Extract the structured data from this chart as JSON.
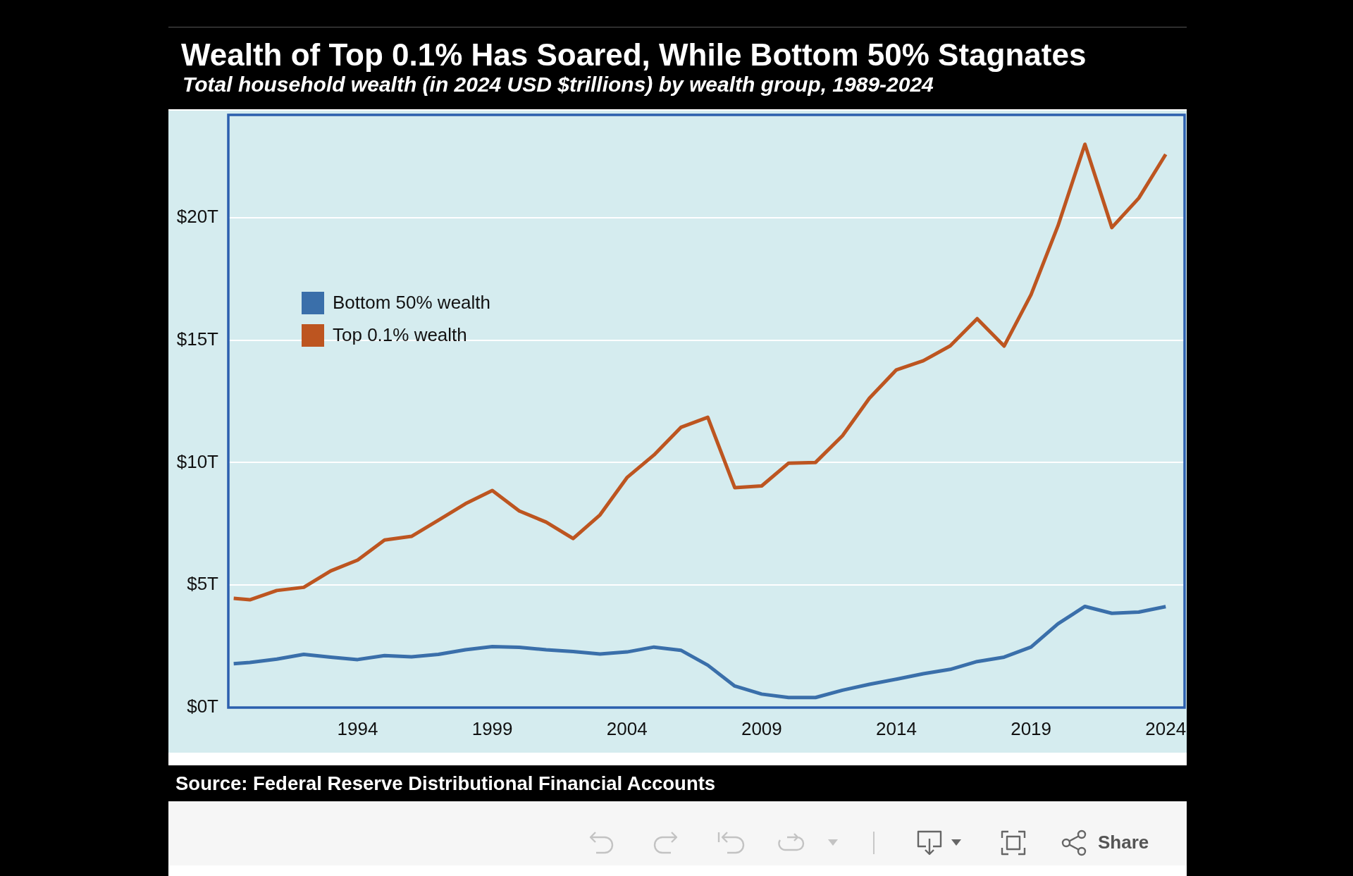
{
  "chart_data": {
    "type": "line",
    "title": "Wealth of Top 0.1% Has Soared, While Bottom 50% Stagnates",
    "subtitle": "Total household wealth (in 2024 USD $trillions) by wealth group, 1989-2024",
    "x": [
      1989.4,
      1990,
      1991,
      1992,
      1993,
      1994,
      1995,
      1996,
      1997,
      1998,
      1999,
      2000,
      2001,
      2002,
      2003,
      2004,
      2005,
      2006,
      2007,
      2008,
      2009,
      2010,
      2011,
      2012,
      2013,
      2014,
      2015,
      2016,
      2017,
      2018,
      2019,
      2020,
      2021,
      2022,
      2023,
      2024
    ],
    "series": [
      {
        "name": "Bottom 50% wealth",
        "color": "#3a6faa",
        "values": [
          1.79,
          1.84,
          1.98,
          2.17,
          2.06,
          1.96,
          2.12,
          2.07,
          2.17,
          2.36,
          2.49,
          2.46,
          2.36,
          2.29,
          2.19,
          2.27,
          2.47,
          2.34,
          1.73,
          0.88,
          0.55,
          0.41,
          0.41,
          0.71,
          0.95,
          1.16,
          1.38,
          1.56,
          1.88,
          2.06,
          2.47,
          3.42,
          4.13,
          3.85,
          3.9,
          4.12
        ]
      },
      {
        "name": "Top 0.1% wealth",
        "color": "#bd5520",
        "values": [
          4.46,
          4.4,
          4.78,
          4.91,
          5.58,
          6.02,
          6.84,
          6.99,
          7.65,
          8.32,
          8.86,
          8.03,
          7.57,
          6.9,
          7.87,
          9.39,
          10.31,
          11.44,
          11.85,
          8.98,
          9.05,
          9.98,
          10.01,
          11.1,
          12.63,
          13.79,
          14.16,
          14.77,
          15.88,
          14.76,
          16.86,
          19.67,
          23.0,
          19.6,
          20.8,
          22.59
        ]
      }
    ],
    "xlim": [
      1989.2,
      2024.7
    ],
    "xticks": [
      1994,
      1999,
      2004,
      2009,
      2014,
      2019,
      2024
    ],
    "ylim": [
      0,
      24.2
    ],
    "yticks": [
      {
        "value": 0,
        "label": "$0T"
      },
      {
        "value": 5,
        "label": "$5T"
      },
      {
        "value": 10,
        "label": "$10T"
      },
      {
        "value": 15,
        "label": "$15T"
      },
      {
        "value": 20,
        "label": "$20T"
      }
    ],
    "grid": "y",
    "legend": "top left",
    "line_style": "solid",
    "annotations": [
      "Source: Federal Reserve Distributional Financial Accounts",
      "Share"
    ]
  }
}
